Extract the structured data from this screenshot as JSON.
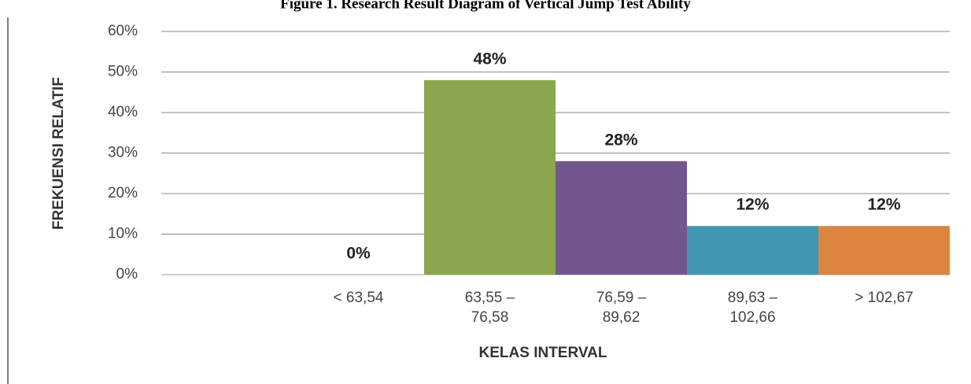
{
  "chart_data": {
    "type": "bar",
    "title": "Figure 1. Research Result Diagram of Vertical Jump Test Ability",
    "y_label": "FREKUENSI RELATIF",
    "x_label": "KELAS INTERVAL",
    "categories": [
      null,
      "< 63,54",
      "63,55 –\n76,58",
      "76,59 –\n89,62",
      "89,63 –\n102,66",
      "> 102,67"
    ],
    "values": [
      null,
      0,
      48,
      28,
      12,
      12
    ],
    "value_labels": [
      null,
      "0%",
      "48%",
      "28%",
      "12%",
      "12%"
    ],
    "colors": [
      null,
      "#8aa64e",
      "#8aa64e",
      "#72578e",
      "#3f98b0",
      "#dc853f"
    ],
    "ylim": [
      0,
      60
    ],
    "yticks": [
      {
        "value": 0,
        "label": "0%"
      },
      {
        "value": 10,
        "label": "10%"
      },
      {
        "value": 20,
        "label": "20%"
      },
      {
        "value": 30,
        "label": "30%"
      },
      {
        "value": 40,
        "label": "40%"
      },
      {
        "value": 50,
        "label": "50%"
      },
      {
        "value": 60,
        "label": "60%"
      }
    ],
    "grid": true
  }
}
